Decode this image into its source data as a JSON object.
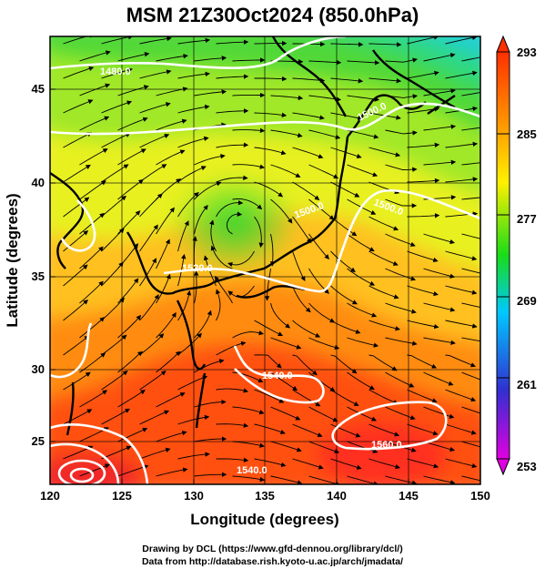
{
  "title": "MSM 21Z30Oct2024 (850.0hPa)",
  "x_axis": {
    "label": "Longitude (degrees)",
    "ticks": [
      "120",
      "125",
      "130",
      "135",
      "140",
      "145",
      "150"
    ]
  },
  "y_axis": {
    "label": "Latitude  (degrees)",
    "ticks": [
      "25",
      "30",
      "35",
      "40",
      "45"
    ]
  },
  "colorbar": {
    "ticks": [
      "253",
      "261",
      "269",
      "277",
      "285",
      "293"
    ],
    "colors": [
      "#e000e0",
      "#3030d0",
      "#00c8ff",
      "#18dc18",
      "#fff000",
      "#ff8c00",
      "#ff3000"
    ]
  },
  "contour_labels": [
    "1500.0",
    "1500.0",
    "1500.0",
    "1520.0",
    "1480.0",
    "1560.0",
    "1540.0",
    "1540.0"
  ],
  "credits": [
    "Drawing by DCL (https://www.gfd-dennou.org/library/dcl/)",
    "Data from http://database.rish.kyoto-u.ac.jp/arch/jmadata/"
  ]
}
